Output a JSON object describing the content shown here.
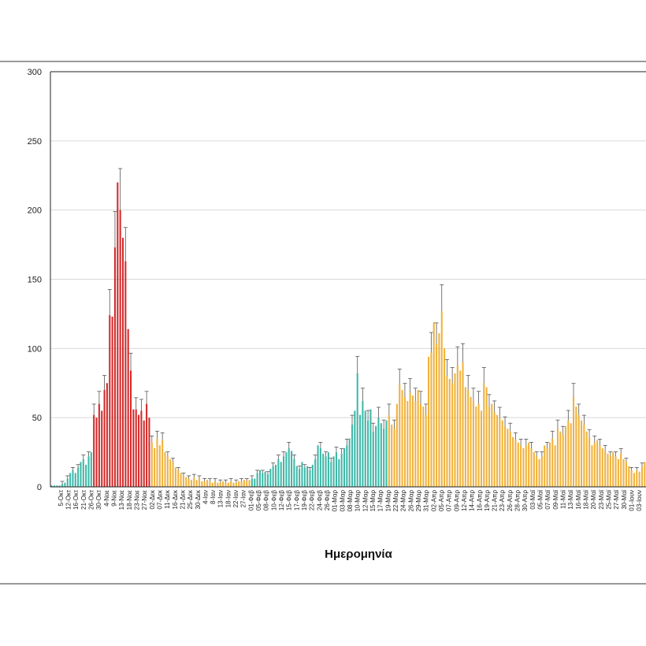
{
  "chart_data": {
    "type": "bar",
    "xlabel": "Ημερομηνία",
    "ylim": [
      0,
      300
    ],
    "yticks": [
      0,
      50,
      100,
      150,
      200,
      250,
      300
    ],
    "grid": true,
    "xticklabels": [
      "5-Οκτ",
      "12-Οκτ",
      "16-Οκτ",
      "21-Οκτ",
      "26-Οκτ",
      "30-Οκτ",
      "4-Νοε",
      "9-Νοε",
      "13-Νοε",
      "18-Νοε",
      "23-Νοε",
      "27-Νοε",
      "02-Δεκ",
      "07-Δεκ",
      "11-Δεκ",
      "16-Δεκ",
      "21-Δεκ",
      "25-Δεκ",
      "30-Δεκ",
      "4-Ιαν",
      "8-Ιαν",
      "13-Ιαν",
      "18-Ιαν",
      "22-Ιαν",
      "27-Ιαν",
      "01-Φεβ",
      "05-Φεβ",
      "08-Φεβ",
      "10-Φεβ",
      "12-Φεβ",
      "15-Φεβ",
      "17-Φεβ",
      "19-Φεβ",
      "22-Φεβ",
      "24-Φεβ",
      "26-Φεβ",
      "01-Μαρ",
      "03-Μαρ",
      "08-Μαρ",
      "10-Μαρ",
      "12-Μαρ",
      "15-Μαρ",
      "17-Μαρ",
      "19-Μαρ",
      "22-Μαρ",
      "24-Μαρ",
      "26-Μαρ",
      "29-Μαρ",
      "31-Μαρ",
      "02-Απρ",
      "05-Απρ",
      "07-Απρ",
      "09-Απρ",
      "12-Απρ",
      "14-Απρ",
      "16-Απρ",
      "19-Απρ",
      "21-Απρ",
      "23-Απρ",
      "26-Απρ",
      "28-Απρ",
      "30-Απρ",
      "03-Μαϊ",
      "05-Μαϊ",
      "07-Μαϊ",
      "09-Μαϊ",
      "11-Μαϊ",
      "13-Μαϊ",
      "16-Μαϊ",
      "18-Μαϊ",
      "20-Μαϊ",
      "23-Μαϊ",
      "25-Μαϊ",
      "27-Μαϊ",
      "30-Μαϊ",
      "01-Ιουν",
      "03-Ιουν"
    ],
    "colors": {
      "red": "#d42b2b",
      "orange": "#f0b23c",
      "teal": "#3fb8a8",
      "error": "#555555",
      "grid": "#d9d9d9"
    },
    "series": [
      {
        "values": [
          1,
          1,
          1,
          1,
          2,
          3,
          6,
          10,
          12,
          10,
          14,
          18,
          20,
          16,
          22,
          25,
          52,
          50,
          60,
          55,
          70,
          75,
          124,
          123,
          173,
          220,
          200,
          180,
          163,
          114,
          84,
          56,
          56,
          52,
          55,
          48,
          60,
          50,
          32,
          28,
          35,
          30,
          34,
          25,
          22,
          20,
          18,
          14,
          12,
          10,
          8,
          7,
          6,
          5,
          7,
          5,
          6,
          4,
          4,
          5,
          4,
          3,
          4,
          3,
          3,
          4,
          3,
          3,
          4,
          3,
          3,
          4,
          4,
          5,
          4,
          5,
          6,
          6,
          10,
          12,
          10,
          11,
          9,
          13,
          15,
          16,
          20,
          18,
          22,
          25,
          28,
          26,
          20,
          15,
          13,
          18,
          14,
          15,
          12,
          16,
          20,
          30,
          28,
          24,
          22,
          25,
          18,
          22,
          25,
          20,
          24,
          28,
          30,
          35,
          45,
          55,
          82,
          52,
          62,
          55,
          48,
          56,
          40,
          44,
          50,
          46,
          42,
          48,
          52,
          45,
          42,
          60,
          74,
          70,
          65,
          62,
          68,
          66,
          62,
          70,
          60,
          58,
          52,
          94,
          97,
          119,
          103,
          111,
          127,
          100,
          80,
          78,
          75,
          82,
          88,
          84,
          90,
          72,
          70,
          65,
          62,
          58,
          60,
          55,
          75,
          72,
          58,
          60,
          54,
          52,
          50,
          48,
          44,
          42,
          40,
          36,
          34,
          32,
          30,
          28,
          30,
          32,
          28,
          25,
          22,
          20,
          22,
          30,
          28,
          32,
          35,
          30,
          42,
          40,
          38,
          44,
          48,
          46,
          65,
          58,
          52,
          48,
          45,
          40,
          36,
          30,
          32,
          34,
          30,
          28,
          26,
          24,
          22,
          25,
          22,
          20,
          24,
          20,
          18,
          15,
          12,
          10,
          12,
          11,
          15,
          18
        ]
      }
    ]
  }
}
